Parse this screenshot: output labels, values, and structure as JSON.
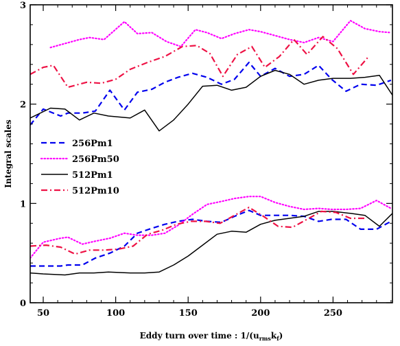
{
  "chart_data": {
    "type": "line",
    "xlabel": "Eddy turn over time : 1/(u",
    "xlabel_sub1": "rms",
    "xlabel_mid": "k",
    "xlabel_sub2": "f",
    "xlabel_end": ")",
    "ylabel": "Integral scales",
    "xlim": [
      41,
      291
    ],
    "ylim": [
      0,
      3
    ],
    "xticks": [
      50,
      100,
      150,
      200,
      250
    ],
    "yticks": [
      0,
      1,
      2,
      3
    ],
    "legend_position": "left-middle",
    "series": [
      {
        "name": "256Pm1",
        "color": "#0000ee",
        "dash": "dashed",
        "groups": [
          {
            "x": [
              41,
              50,
              62,
              67,
              77,
              86,
              96,
              106,
              115,
              125,
              134,
              143,
              153,
              163,
              173,
              182,
              192,
              200,
              210,
              220,
              230,
              240,
              249,
              259,
              269,
              280,
              290
            ],
            "y": [
              1.79,
              1.95,
              1.88,
              1.91,
              1.91,
              1.93,
              2.14,
              1.94,
              2.12,
              2.15,
              2.22,
              2.27,
              2.31,
              2.27,
              2.2,
              2.25,
              2.42,
              2.28,
              2.36,
              2.28,
              2.3,
              2.39,
              2.25,
              2.13,
              2.2,
              2.19,
              2.24
            ]
          },
          {
            "x": [
              41,
              50,
              62,
              67,
              77,
              86,
              96,
              106,
              115,
              125,
              134,
              143,
              153,
              163,
              173,
              182,
              192,
              200,
              210,
              220,
              230,
              240,
              249,
              259,
              269,
              280,
              290
            ],
            "y": [
              0.37,
              0.37,
              0.37,
              0.38,
              0.38,
              0.45,
              0.5,
              0.57,
              0.7,
              0.75,
              0.79,
              0.82,
              0.84,
              0.82,
              0.81,
              0.87,
              0.93,
              0.88,
              0.88,
              0.88,
              0.87,
              0.82,
              0.84,
              0.84,
              0.74,
              0.74,
              0.82
            ]
          }
        ]
      },
      {
        "name": "256Pm50",
        "color": "#ff00ff",
        "dash": "dotted",
        "groups": [
          {
            "x": [
              55,
              65,
              75,
              82,
              92,
              106,
              115,
              125,
              135,
              145,
              155,
              163,
              173,
              182,
              192,
              200,
              210,
              220,
              230,
              240,
              250,
              262,
              272,
              282,
              290
            ],
            "y": [
              2.57,
              2.61,
              2.65,
              2.67,
              2.65,
              2.83,
              2.71,
              2.72,
              2.63,
              2.58,
              2.75,
              2.72,
              2.66,
              2.71,
              2.75,
              2.73,
              2.69,
              2.65,
              2.62,
              2.67,
              2.63,
              2.84,
              2.76,
              2.73,
              2.72
            ]
          },
          {
            "x": [
              41,
              50,
              62,
              67,
              77,
              86,
              96,
              106,
              115,
              125,
              134,
              143,
              153,
              163,
              173,
              182,
              192,
              200,
              210,
              220,
              230,
              240,
              249,
              259,
              269,
              280,
              290
            ],
            "y": [
              0.45,
              0.61,
              0.65,
              0.66,
              0.59,
              0.62,
              0.65,
              0.7,
              0.68,
              0.68,
              0.7,
              0.78,
              0.89,
              0.99,
              1.02,
              1.05,
              1.07,
              1.07,
              1.01,
              0.97,
              0.94,
              0.95,
              0.94,
              0.94,
              0.95,
              1.03,
              0.95
            ]
          }
        ]
      },
      {
        "name": "512Pm1",
        "color": "#000000",
        "dash": "solid",
        "groups": [
          {
            "x": [
              41,
              55,
              65,
              75,
              85,
              95,
              110,
              120,
              130,
              140,
              150,
              160,
              170,
              180,
              190,
              200,
              210,
              220,
              230,
              240,
              250,
              262,
              272,
              282,
              291
            ],
            "y": [
              1.86,
              1.96,
              1.95,
              1.84,
              1.91,
              1.88,
              1.86,
              1.94,
              1.73,
              1.84,
              2.0,
              2.18,
              2.19,
              2.14,
              2.17,
              2.28,
              2.34,
              2.3,
              2.2,
              2.24,
              2.26,
              2.26,
              2.27,
              2.29,
              2.09
            ]
          },
          {
            "x": [
              41,
              50,
              65,
              75,
              85,
              95,
              110,
              120,
              130,
              140,
              150,
              160,
              170,
              180,
              190,
              200,
              210,
              220,
              230,
              240,
              250,
              262,
              272,
              282,
              291
            ],
            "y": [
              0.3,
              0.29,
              0.28,
              0.3,
              0.3,
              0.31,
              0.3,
              0.3,
              0.31,
              0.38,
              0.47,
              0.58,
              0.69,
              0.72,
              0.71,
              0.79,
              0.83,
              0.85,
              0.87,
              0.92,
              0.92,
              0.9,
              0.88,
              0.77,
              0.9
            ]
          }
        ]
      },
      {
        "name": "512Pm10",
        "color": "#ee1144",
        "dash": "dashdot",
        "groups": [
          {
            "x": [
              41,
              50,
              57,
              67,
              80,
              90,
              100,
              110,
              122,
              134,
              146,
              156,
              165,
              174,
              184,
              194,
              203,
              213,
              223,
              232,
              243,
              253,
              264,
              274
            ],
            "y": [
              2.3,
              2.37,
              2.39,
              2.17,
              2.22,
              2.21,
              2.25,
              2.35,
              2.42,
              2.48,
              2.58,
              2.59,
              2.51,
              2.28,
              2.5,
              2.58,
              2.37,
              2.48,
              2.65,
              2.5,
              2.68,
              2.56,
              2.3,
              2.47
            ]
          },
          {
            "x": [
              41,
              52,
              62,
              72,
              82,
              92,
              102,
              112,
              122,
              132,
              142,
              152,
              162,
              172,
              182,
              192,
              202,
              212,
              222,
              232,
              242,
              252,
              262,
              272
            ],
            "y": [
              0.57,
              0.58,
              0.56,
              0.49,
              0.53,
              0.53,
              0.54,
              0.57,
              0.69,
              0.73,
              0.79,
              0.82,
              0.82,
              0.8,
              0.88,
              0.96,
              0.87,
              0.77,
              0.76,
              0.84,
              0.92,
              0.91,
              0.85,
              0.85
            ]
          }
        ]
      }
    ]
  }
}
